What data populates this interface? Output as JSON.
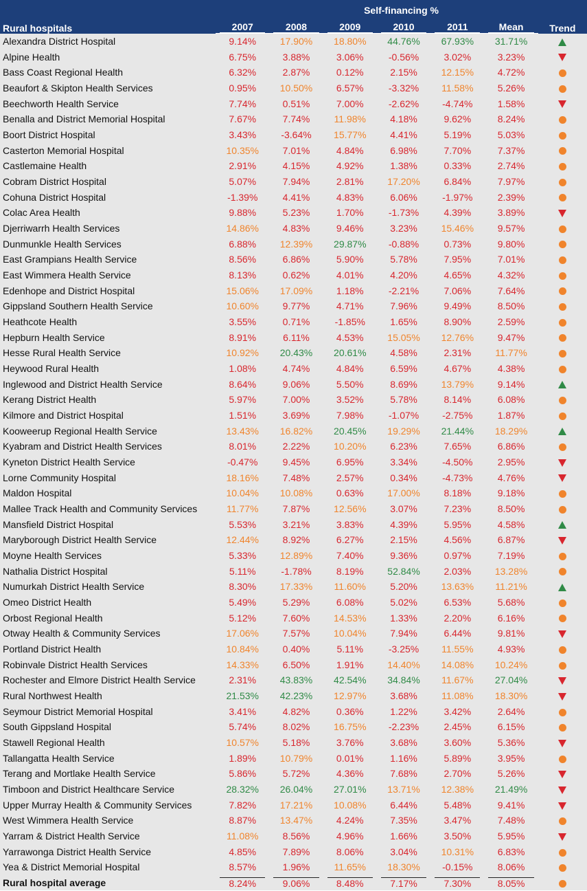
{
  "header": {
    "group_title": "Self-financing %",
    "col_name": "Rural hospitals",
    "years": [
      "2007",
      "2008",
      "2009",
      "2010",
      "2011"
    ],
    "col_mean": "Mean",
    "col_trend": "Trend"
  },
  "colors": {
    "red": "#d8262e",
    "orange": "#f0842c",
    "green": "#2f8a46",
    "header_bg": "#1d3f7a",
    "row_bg": "#e7e7e7"
  },
  "rows": [
    {
      "name": "Alexandra District Hospital",
      "values": [
        "9.14%",
        "17.90%",
        "18.80%",
        "44.76%",
        "67.93%"
      ],
      "mean": "31.71%",
      "trend": "up"
    },
    {
      "name": "Alpine Health",
      "values": [
        "6.75%",
        "3.88%",
        "3.06%",
        "-0.56%",
        "3.02%"
      ],
      "mean": "3.23%",
      "trend": "down"
    },
    {
      "name": "Bass Coast Regional Health",
      "values": [
        "6.32%",
        "2.87%",
        "0.12%",
        "2.15%",
        "12.15%"
      ],
      "mean": "4.72%",
      "trend": "flat"
    },
    {
      "name": "Beaufort & Skipton Health Services",
      "values": [
        "0.95%",
        "10.50%",
        "6.57%",
        "-3.32%",
        "11.58%"
      ],
      "mean": "5.26%",
      "trend": "flat"
    },
    {
      "name": "Beechworth Health Service",
      "values": [
        "7.74%",
        "0.51%",
        "7.00%",
        "-2.62%",
        "-4.74%"
      ],
      "mean": "1.58%",
      "trend": "down"
    },
    {
      "name": "Benalla and District Memorial Hospital",
      "values": [
        "7.67%",
        "7.74%",
        "11.98%",
        "4.18%",
        "9.62%"
      ],
      "mean": "8.24%",
      "trend": "flat"
    },
    {
      "name": "Boort District Hospital",
      "values": [
        "3.43%",
        "-3.64%",
        "15.77%",
        "4.41%",
        "5.19%"
      ],
      "mean": "5.03%",
      "trend": "flat"
    },
    {
      "name": "Casterton Memorial Hospital",
      "values": [
        "10.35%",
        "7.01%",
        "4.84%",
        "6.98%",
        "7.70%"
      ],
      "mean": "7.37%",
      "trend": "flat"
    },
    {
      "name": "Castlemaine Health",
      "values": [
        "2.91%",
        "4.15%",
        "4.92%",
        "1.38%",
        "0.33%"
      ],
      "mean": "2.74%",
      "trend": "flat"
    },
    {
      "name": "Cobram District Hospital",
      "values": [
        "5.07%",
        "7.94%",
        "2.81%",
        "17.20%",
        "6.84%"
      ],
      "mean": "7.97%",
      "trend": "flat"
    },
    {
      "name": "Cohuna District Hospital",
      "values": [
        "-1.39%",
        "4.41%",
        "4.83%",
        "6.06%",
        "-1.97%"
      ],
      "mean": "2.39%",
      "trend": "flat"
    },
    {
      "name": "Colac Area Health",
      "values": [
        "9.88%",
        "5.23%",
        "1.70%",
        "-1.73%",
        "4.39%"
      ],
      "mean": "3.89%",
      "trend": "down"
    },
    {
      "name": "Djerriwarrh Health Services",
      "values": [
        "14.86%",
        "4.83%",
        "9.46%",
        "3.23%",
        "15.46%"
      ],
      "mean": "9.57%",
      "trend": "flat"
    },
    {
      "name": "Dunmunkle Health Services",
      "values": [
        "6.88%",
        "12.39%",
        "29.87%",
        "-0.88%",
        "0.73%"
      ],
      "mean": "9.80%",
      "trend": "flat"
    },
    {
      "name": "East Grampians Health Service",
      "values": [
        "8.56%",
        "6.86%",
        "5.90%",
        "5.78%",
        "7.95%"
      ],
      "mean": "7.01%",
      "trend": "flat"
    },
    {
      "name": "East Wimmera Health Service",
      "values": [
        "8.13%",
        "0.62%",
        "4.01%",
        "4.20%",
        "4.65%"
      ],
      "mean": "4.32%",
      "trend": "flat"
    },
    {
      "name": "Edenhope and District Hospital",
      "values": [
        "15.06%",
        "17.09%",
        "1.18%",
        "-2.21%",
        "7.06%"
      ],
      "mean": "7.64%",
      "trend": "flat"
    },
    {
      "name": "Gippsland Southern Health Service",
      "values": [
        "10.60%",
        "9.77%",
        "4.71%",
        "7.96%",
        "9.49%"
      ],
      "mean": "8.50%",
      "trend": "flat"
    },
    {
      "name": "Heathcote Health",
      "values": [
        "3.55%",
        "0.71%",
        "-1.85%",
        "1.65%",
        "8.90%"
      ],
      "mean": "2.59%",
      "trend": "flat"
    },
    {
      "name": "Hepburn Health Service",
      "values": [
        "8.91%",
        "6.11%",
        "4.53%",
        "15.05%",
        "12.76%"
      ],
      "mean": "9.47%",
      "trend": "flat"
    },
    {
      "name": "Hesse Rural Health Service",
      "values": [
        "10.92%",
        "20.43%",
        "20.61%",
        "4.58%",
        "2.31%"
      ],
      "mean": "11.77%",
      "trend": "flat"
    },
    {
      "name": "Heywood Rural Health",
      "values": [
        "1.08%",
        "4.74%",
        "4.84%",
        "6.59%",
        "4.67%"
      ],
      "mean": "4.38%",
      "trend": "flat"
    },
    {
      "name": "Inglewood and District Health Service",
      "values": [
        "8.64%",
        "9.06%",
        "5.50%",
        "8.69%",
        "13.79%"
      ],
      "mean": "9.14%",
      "trend": "up"
    },
    {
      "name": "Kerang District Health",
      "values": [
        "5.97%",
        "7.00%",
        "3.52%",
        "5.78%",
        "8.14%"
      ],
      "mean": "6.08%",
      "trend": "flat"
    },
    {
      "name": "Kilmore and District Hospital",
      "values": [
        "1.51%",
        "3.69%",
        "7.98%",
        "-1.07%",
        "-2.75%"
      ],
      "mean": "1.87%",
      "trend": "flat"
    },
    {
      "name": "Kooweerup Regional Health Service",
      "values": [
        "13.43%",
        "16.82%",
        "20.45%",
        "19.29%",
        "21.44%"
      ],
      "mean": "18.29%",
      "trend": "up"
    },
    {
      "name": "Kyabram and District Health Services",
      "values": [
        "8.01%",
        "2.22%",
        "10.20%",
        "6.23%",
        "7.65%"
      ],
      "mean": "6.86%",
      "trend": "flat"
    },
    {
      "name": "Kyneton District Health Service",
      "values": [
        "-0.47%",
        "9.45%",
        "6.95%",
        "3.34%",
        "-4.50%"
      ],
      "mean": "2.95%",
      "trend": "down"
    },
    {
      "name": "Lorne Community Hospital",
      "values": [
        "18.16%",
        "7.48%",
        "2.57%",
        "0.34%",
        "-4.73%"
      ],
      "mean": "4.76%",
      "trend": "down"
    },
    {
      "name": "Maldon Hospital",
      "values": [
        "10.04%",
        "10.08%",
        "0.63%",
        "17.00%",
        "8.18%"
      ],
      "mean": "9.18%",
      "trend": "flat"
    },
    {
      "name": "Mallee Track Health and Community Services",
      "values": [
        "11.77%",
        "7.87%",
        "12.56%",
        "3.07%",
        "7.23%"
      ],
      "mean": "8.50%",
      "trend": "flat"
    },
    {
      "name": "Mansfield District Hospital",
      "values": [
        "5.53%",
        "3.21%",
        "3.83%",
        "4.39%",
        "5.95%"
      ],
      "mean": "4.58%",
      "trend": "up"
    },
    {
      "name": "Maryborough District Health Service",
      "values": [
        "12.44%",
        "8.92%",
        "6.27%",
        "2.15%",
        "4.56%"
      ],
      "mean": "6.87%",
      "trend": "down"
    },
    {
      "name": "Moyne Health Services",
      "values": [
        "5.33%",
        "12.89%",
        "7.40%",
        "9.36%",
        "0.97%"
      ],
      "mean": "7.19%",
      "trend": "flat"
    },
    {
      "name": "Nathalia District Hospital",
      "values": [
        "5.11%",
        "-1.78%",
        "8.19%",
        "52.84%",
        "2.03%"
      ],
      "mean": "13.28%",
      "trend": "flat"
    },
    {
      "name": "Numurkah District Health Service",
      "values": [
        "8.30%",
        "17.33%",
        "11.60%",
        "5.20%",
        "13.63%"
      ],
      "mean": "11.21%",
      "trend": "up"
    },
    {
      "name": "Omeo District Health",
      "values": [
        "5.49%",
        "5.29%",
        "6.08%",
        "5.02%",
        "6.53%"
      ],
      "mean": "5.68%",
      "trend": "flat"
    },
    {
      "name": "Orbost Regional Health",
      "values": [
        "5.12%",
        "7.60%",
        "14.53%",
        "1.33%",
        "2.20%"
      ],
      "mean": "6.16%",
      "trend": "flat"
    },
    {
      "name": "Otway Health & Community Services",
      "values": [
        "17.06%",
        "7.57%",
        "10.04%",
        "7.94%",
        "6.44%"
      ],
      "mean": "9.81%",
      "trend": "down"
    },
    {
      "name": "Portland District Health",
      "values": [
        "10.84%",
        "0.40%",
        "5.11%",
        "-3.25%",
        "11.55%"
      ],
      "mean": "4.93%",
      "trend": "flat"
    },
    {
      "name": "Robinvale District Health Services",
      "values": [
        "14.33%",
        "6.50%",
        "1.91%",
        "14.40%",
        "14.08%"
      ],
      "mean": "10.24%",
      "trend": "flat"
    },
    {
      "name": "Rochester and Elmore District Health Service",
      "values": [
        "2.31%",
        "43.83%",
        "42.54%",
        "34.84%",
        "11.67%"
      ],
      "mean": "27.04%",
      "trend": "down"
    },
    {
      "name": "Rural Northwest Health",
      "values": [
        "21.53%",
        "42.23%",
        "12.97%",
        "3.68%",
        "11.08%"
      ],
      "mean": "18.30%",
      "trend": "down"
    },
    {
      "name": "Seymour District Memorial Hospital",
      "values": [
        "3.41%",
        "4.82%",
        "0.36%",
        "1.22%",
        "3.42%"
      ],
      "mean": "2.64%",
      "trend": "flat"
    },
    {
      "name": "South Gippsland Hospital",
      "values": [
        "5.74%",
        "8.02%",
        "16.75%",
        "-2.23%",
        "2.45%"
      ],
      "mean": "6.15%",
      "trend": "flat"
    },
    {
      "name": "Stawell Regional Health",
      "values": [
        "10.57%",
        "5.18%",
        "3.76%",
        "3.68%",
        "3.60%"
      ],
      "mean": "5.36%",
      "trend": "down"
    },
    {
      "name": "Tallangatta Health Service",
      "values": [
        "1.89%",
        "10.79%",
        "0.01%",
        "1.16%",
        "5.89%"
      ],
      "mean": "3.95%",
      "trend": "flat"
    },
    {
      "name": "Terang and Mortlake Health Service",
      "values": [
        "5.86%",
        "5.72%",
        "4.36%",
        "7.68%",
        "2.70%"
      ],
      "mean": "5.26%",
      "trend": "down"
    },
    {
      "name": "Timboon and District Healthcare Service",
      "values": [
        "28.32%",
        "26.04%",
        "27.01%",
        "13.71%",
        "12.38%"
      ],
      "mean": "21.49%",
      "trend": "down"
    },
    {
      "name": "Upper Murray Health & Community Services",
      "values": [
        "7.82%",
        "17.21%",
        "10.08%",
        "6.44%",
        "5.48%"
      ],
      "mean": "9.41%",
      "trend": "down"
    },
    {
      "name": "West Wimmera Health Service",
      "values": [
        "8.87%",
        "13.47%",
        "4.24%",
        "7.35%",
        "3.47%"
      ],
      "mean": "7.48%",
      "trend": "flat"
    },
    {
      "name": "Yarram & District Health Service",
      "values": [
        "11.08%",
        "8.56%",
        "4.96%",
        "1.66%",
        "3.50%"
      ],
      "mean": "5.95%",
      "trend": "down"
    },
    {
      "name": "Yarrawonga District Health Service",
      "values": [
        "4.85%",
        "7.89%",
        "8.06%",
        "3.04%",
        "10.31%"
      ],
      "mean": "6.83%",
      "trend": "flat"
    },
    {
      "name": "Yea & District Memorial Hospital",
      "values": [
        "8.57%",
        "1.96%",
        "11.65%",
        "18.30%",
        "-0.15%"
      ],
      "mean": "8.06%",
      "trend": "flat"
    }
  ],
  "average": {
    "name": "Rural hospital average",
    "values": [
      "8.24%",
      "9.06%",
      "8.48%",
      "7.17%",
      "7.30%"
    ],
    "mean": "8.05%",
    "trend": "flat"
  }
}
